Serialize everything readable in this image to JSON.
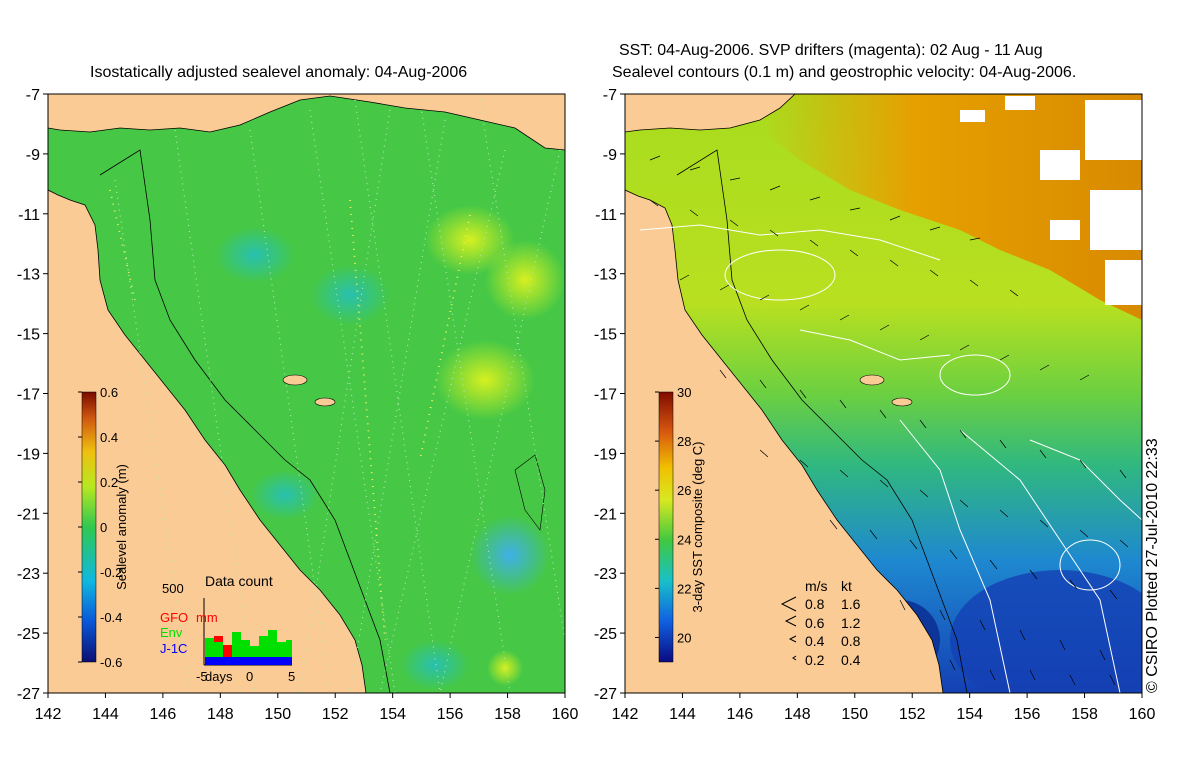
{
  "left_panel": {
    "title": "Isostatically adjusted sealevel anomaly: 04-Aug-2006",
    "lat_ticks": [
      "-7",
      "-9",
      "-11",
      "-13",
      "-15",
      "-17",
      "-19",
      "-21",
      "-23",
      "-25",
      "-27"
    ],
    "lon_ticks": [
      "142",
      "144",
      "146",
      "148",
      "150",
      "152",
      "154",
      "156",
      "158",
      "160"
    ],
    "colorbar": {
      "label": "Sealevel anomaly (m)",
      "ticks": [
        "0.6",
        "0.4",
        "0.2",
        "0",
        "-0.2",
        "-0.4",
        "-0.6"
      ],
      "range": [
        -0.6,
        0.6
      ]
    },
    "data_count": {
      "title": "Data count",
      "max_label": "500",
      "x_labels": [
        "-5",
        "days",
        "0",
        "5"
      ],
      "legend": [
        {
          "label": "GFO",
          "color": "#ff0000"
        },
        {
          "label": "mm",
          "color": "#ff0000"
        },
        {
          "label": "Env",
          "color": "#00e000"
        },
        {
          "label": "J-1C",
          "color": "#0000ff"
        }
      ]
    }
  },
  "right_panel": {
    "title_line1": "SST: 04-Aug-2006. SVP drifters (magenta): 02 Aug - 11 Aug",
    "title_line2": "Sealevel contours (0.1 m) and geostrophic velocity: 04-Aug-2006.",
    "lat_ticks": [
      "-7",
      "-9",
      "-11",
      "-13",
      "-15",
      "-17",
      "-19",
      "-21",
      "-23",
      "-25",
      "-27"
    ],
    "lon_ticks": [
      "142",
      "144",
      "146",
      "148",
      "150",
      "152",
      "154",
      "156",
      "158",
      "160"
    ],
    "colorbar": {
      "label": "3-day SST composite (deg C)",
      "ticks": [
        "30",
        "28",
        "26",
        "24",
        "22",
        "20"
      ],
      "range": [
        19,
        30
      ]
    },
    "velocity_key": {
      "header_ms": "m/s",
      "header_kt": "kt",
      "rows": [
        {
          "ms": "0.8",
          "kt": "1.6"
        },
        {
          "ms": "0.6",
          "kt": "1.2"
        },
        {
          "ms": "0.4",
          "kt": "0.8"
        },
        {
          "ms": "0.2",
          "kt": "0.4"
        }
      ]
    }
  },
  "credit": "© CSIRO Plotted 27-Jul-2010 22:33",
  "colors": {
    "land": "#fbcb96",
    "sla_ocean": "#46c846",
    "sst_warm": "#e6a000",
    "sst_mid": "#a8dc1e",
    "sst_cool": "#1e9ecc",
    "sst_cold": "#1440b4"
  }
}
